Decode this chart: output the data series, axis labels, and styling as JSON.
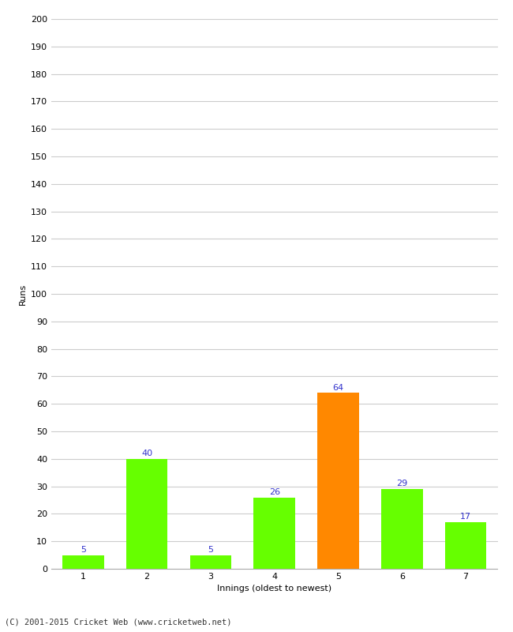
{
  "categories": [
    "1",
    "2",
    "3",
    "4",
    "5",
    "6",
    "7"
  ],
  "values": [
    5,
    40,
    5,
    26,
    64,
    29,
    17
  ],
  "bar_colors": [
    "#66ff00",
    "#66ff00",
    "#66ff00",
    "#66ff00",
    "#ff8800",
    "#66ff00",
    "#66ff00"
  ],
  "xlabel": "Innings (oldest to newest)",
  "ylabel": "Runs",
  "ylim": [
    0,
    200
  ],
  "yticks": [
    0,
    10,
    20,
    30,
    40,
    50,
    60,
    70,
    80,
    90,
    100,
    110,
    120,
    130,
    140,
    150,
    160,
    170,
    180,
    190,
    200
  ],
  "label_color": "#3333cc",
  "label_fontsize": 8,
  "footer": "(C) 2001-2015 Cricket Web (www.cricketweb.net)",
  "background_color": "#ffffff",
  "grid_color": "#cccccc",
  "tick_fontsize": 8,
  "xlabel_fontsize": 8,
  "ylabel_fontsize": 8,
  "bar_width": 0.65
}
